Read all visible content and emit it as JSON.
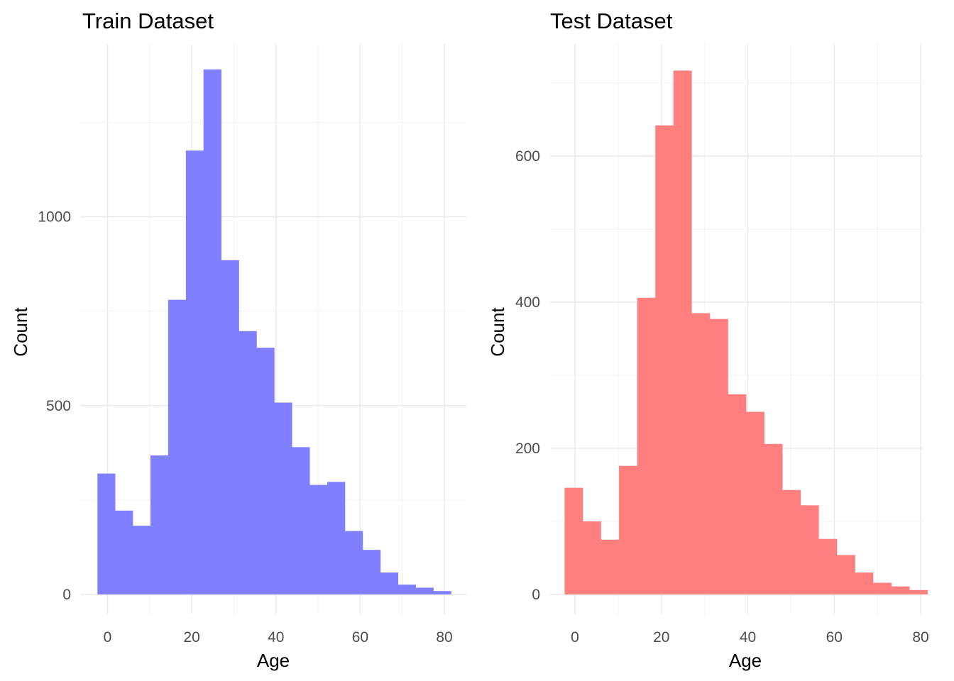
{
  "chart_data": [
    {
      "type": "bar",
      "title": "Train Dataset",
      "xlabel": "Age",
      "ylabel": "Count",
      "color": "#7f7fff",
      "bin_width": 4.2,
      "xlim": [
        -2.4,
        81.6
      ],
      "ylim": [
        0,
        1390
      ],
      "x_ticks": [
        0,
        20,
        40,
        60,
        80
      ],
      "y_ticks": [
        0,
        500,
        1000
      ],
      "bins": [
        {
          "x0": -2.4,
          "x1": 1.8,
          "count": 320
        },
        {
          "x0": 1.8,
          "x1": 6.0,
          "count": 222
        },
        {
          "x0": 6.0,
          "x1": 10.2,
          "count": 182
        },
        {
          "x0": 10.2,
          "x1": 14.4,
          "count": 368
        },
        {
          "x0": 14.4,
          "x1": 18.6,
          "count": 780
        },
        {
          "x0": 18.6,
          "x1": 22.8,
          "count": 1175
        },
        {
          "x0": 22.8,
          "x1": 27.0,
          "count": 1390
        },
        {
          "x0": 27.0,
          "x1": 31.2,
          "count": 885
        },
        {
          "x0": 31.2,
          "x1": 35.4,
          "count": 697
        },
        {
          "x0": 35.4,
          "x1": 39.6,
          "count": 653
        },
        {
          "x0": 39.6,
          "x1": 43.8,
          "count": 508
        },
        {
          "x0": 43.8,
          "x1": 48.0,
          "count": 390
        },
        {
          "x0": 48.0,
          "x1": 52.2,
          "count": 290
        },
        {
          "x0": 52.2,
          "x1": 56.4,
          "count": 298
        },
        {
          "x0": 56.4,
          "x1": 60.6,
          "count": 168
        },
        {
          "x0": 60.6,
          "x1": 64.8,
          "count": 118
        },
        {
          "x0": 64.8,
          "x1": 69.0,
          "count": 58
        },
        {
          "x0": 69.0,
          "x1": 73.2,
          "count": 26
        },
        {
          "x0": 73.2,
          "x1": 77.4,
          "count": 18
        },
        {
          "x0": 77.4,
          "x1": 81.6,
          "count": 9
        }
      ]
    },
    {
      "type": "bar",
      "title": "Test Dataset",
      "xlabel": "Age",
      "ylabel": "Count",
      "color": "#ff7f7f",
      "bin_width": 4.2,
      "xlim": [
        -2.4,
        81.6
      ],
      "ylim": [
        0,
        717
      ],
      "x_ticks": [
        0,
        20,
        40,
        60,
        80
      ],
      "y_ticks": [
        0,
        200,
        400,
        600
      ],
      "bins": [
        {
          "x0": -2.4,
          "x1": 1.8,
          "count": 146
        },
        {
          "x0": 1.8,
          "x1": 6.0,
          "count": 100
        },
        {
          "x0": 6.0,
          "x1": 10.2,
          "count": 75
        },
        {
          "x0": 10.2,
          "x1": 14.4,
          "count": 176
        },
        {
          "x0": 14.4,
          "x1": 18.6,
          "count": 406
        },
        {
          "x0": 18.6,
          "x1": 22.8,
          "count": 642
        },
        {
          "x0": 22.8,
          "x1": 27.0,
          "count": 717
        },
        {
          "x0": 27.0,
          "x1": 31.2,
          "count": 385
        },
        {
          "x0": 31.2,
          "x1": 35.4,
          "count": 377
        },
        {
          "x0": 35.4,
          "x1": 39.6,
          "count": 274
        },
        {
          "x0": 39.6,
          "x1": 43.8,
          "count": 250
        },
        {
          "x0": 43.8,
          "x1": 48.0,
          "count": 206
        },
        {
          "x0": 48.0,
          "x1": 52.2,
          "count": 143
        },
        {
          "x0": 52.2,
          "x1": 56.4,
          "count": 122
        },
        {
          "x0": 56.4,
          "x1": 60.6,
          "count": 76
        },
        {
          "x0": 60.6,
          "x1": 64.8,
          "count": 54
        },
        {
          "x0": 64.8,
          "x1": 69.0,
          "count": 30
        },
        {
          "x0": 69.0,
          "x1": 73.2,
          "count": 16
        },
        {
          "x0": 73.2,
          "x1": 77.4,
          "count": 11
        },
        {
          "x0": 77.4,
          "x1": 81.6,
          "count": 6
        }
      ]
    }
  ]
}
